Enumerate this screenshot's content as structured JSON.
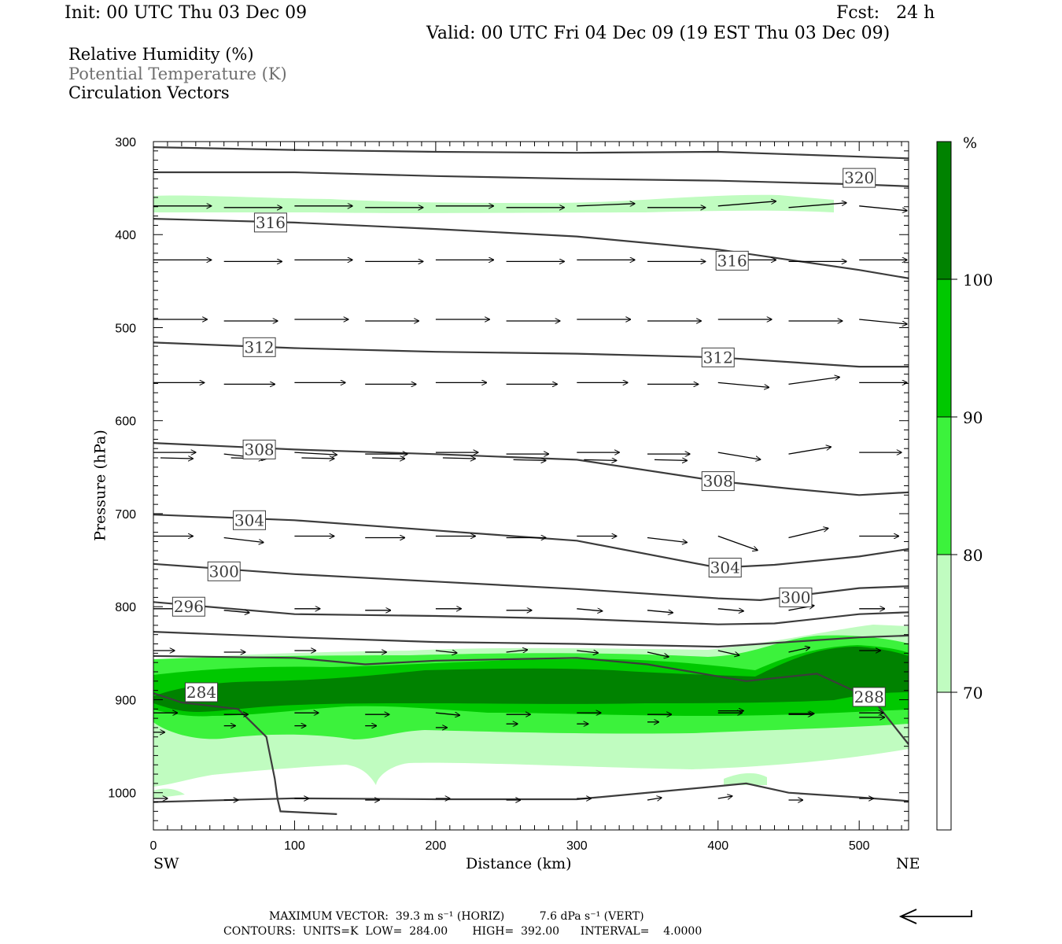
{
  "header": {
    "init": "Init: 00 UTC Thu 03 Dec 09",
    "fcst": "Fcst:   24 h",
    "valid": "Valid: 00 UTC Fri 04 Dec 09 (19 EST Thu 03 Dec 09)"
  },
  "legend": {
    "rh": "Relative Humidity (%)",
    "theta": "Potential Temperature (K)",
    "vectors": "Circulation Vectors"
  },
  "colorbar": {
    "unit": "%",
    "levels": [
      70,
      80,
      90,
      100
    ],
    "labels": [
      "70",
      "80",
      "90",
      "100"
    ],
    "colors": [
      "#ffffff",
      "#c0fcc0",
      "#3cf23c",
      "#00c800",
      "#008200"
    ]
  },
  "chart_data": {
    "type": "cross-section",
    "title": "Relative Humidity (%), Potential Temperature (K), Circulation Vectors",
    "xlabel": "Distance (km)",
    "ylabel": "Pressure (hPa)",
    "xlim": [
      0,
      535
    ],
    "ylim": [
      1040,
      300
    ],
    "x_ticks": [
      "0",
      "100",
      "200",
      "300",
      "400",
      "500"
    ],
    "y_ticks": [
      "300",
      "400",
      "500",
      "600",
      "700",
      "800",
      "900",
      "1000"
    ],
    "x_end_labels": {
      "left": "SW",
      "right": "NE"
    },
    "theta_contours": [
      {
        "label": "",
        "x": [
          0,
          100,
          200,
          300,
          400,
          535
        ],
        "p": [
          306,
          309,
          311,
          312,
          311,
          318
        ]
      },
      {
        "label": "320",
        "x": [
          0,
          100,
          200,
          300,
          400,
          500,
          535
        ],
        "p": [
          333,
          333,
          337,
          340,
          342,
          346,
          348
        ]
      },
      {
        "label": "316",
        "x": [
          0,
          100,
          200,
          300,
          400,
          500,
          535
        ],
        "p": [
          383,
          387,
          394,
          402,
          416,
          438,
          447
        ]
      },
      {
        "label": "312",
        "x": [
          0,
          100,
          200,
          300,
          400,
          500,
          535
        ],
        "p": [
          516,
          522,
          526,
          528,
          532,
          542,
          542
        ]
      },
      {
        "label": "308",
        "x": [
          0,
          100,
          200,
          300,
          400,
          450,
          500,
          535
        ],
        "p": [
          624,
          631,
          636,
          642,
          665,
          673,
          680,
          677
        ]
      },
      {
        "label": "304",
        "x": [
          0,
          100,
          200,
          300,
          400,
          440,
          500,
          535
        ],
        "p": [
          701,
          707,
          718,
          729,
          758,
          755,
          746,
          738
        ]
      },
      {
        "label": "300",
        "x": [
          0,
          100,
          200,
          300,
          400,
          430,
          500,
          535
        ],
        "p": [
          754,
          765,
          773,
          781,
          791,
          793,
          780,
          778
        ]
      },
      {
        "label": "296",
        "x": [
          0,
          100,
          200,
          300,
          400,
          440,
          500,
          535
        ],
        "p": [
          795,
          808,
          810,
          813,
          819,
          818,
          808,
          806
        ]
      },
      {
        "label": "",
        "x": [
          0,
          100,
          200,
          300,
          400,
          430,
          500,
          535
        ],
        "p": [
          827,
          833,
          838,
          840,
          843,
          840,
          833,
          831
        ]
      },
      {
        "label": "288",
        "x": [
          0,
          100,
          150,
          200,
          300,
          350,
          420,
          470,
          510,
          535
        ],
        "p": [
          853,
          855,
          862,
          858,
          855,
          862,
          880,
          872,
          900,
          948
        ]
      },
      {
        "label": "284",
        "x": [
          0,
          20,
          60,
          80,
          86,
          88,
          90,
          130
        ],
        "p": [
          893,
          903,
          910,
          940,
          985,
          1007,
          1020,
          1023
        ]
      },
      {
        "label": "",
        "x": [
          0,
          100,
          200,
          300,
          400,
          420,
          450,
          500,
          535
        ],
        "p": [
          1010,
          1006,
          1007,
          1007,
          993,
          990,
          1000,
          1005,
          1009
        ]
      }
    ],
    "rh_bands": [
      {
        "level": 70,
        "desc": "moist layer 840-990 hPa and thin band near 370 hPa"
      },
      {
        "level": 80,
        "desc": "core 850-945 hPa"
      },
      {
        "level": 90,
        "desc": "core 860-935 hPa"
      },
      {
        "level": 100,
        "desc": "saturated layer 875-905 hPa, deeper in NE"
      }
    ],
    "vector_rows_hPa": [
      370,
      428,
      492,
      560,
      635,
      725,
      800,
      847,
      915,
      975
    ],
    "vector_columns_km": [
      0,
      50,
      100,
      150,
      200,
      250,
      300,
      350,
      400,
      450,
      500
    ],
    "max_vector": "MAXIMUM VECTOR:  39.3 m s⁻¹ (HORIZ)          7.6 dPa s⁻¹ (VERT)",
    "contours_info": "CONTOURS:  UNITS=K  LOW=  284.00       HIGH=  392.00      INTERVAL=    4.0000"
  }
}
